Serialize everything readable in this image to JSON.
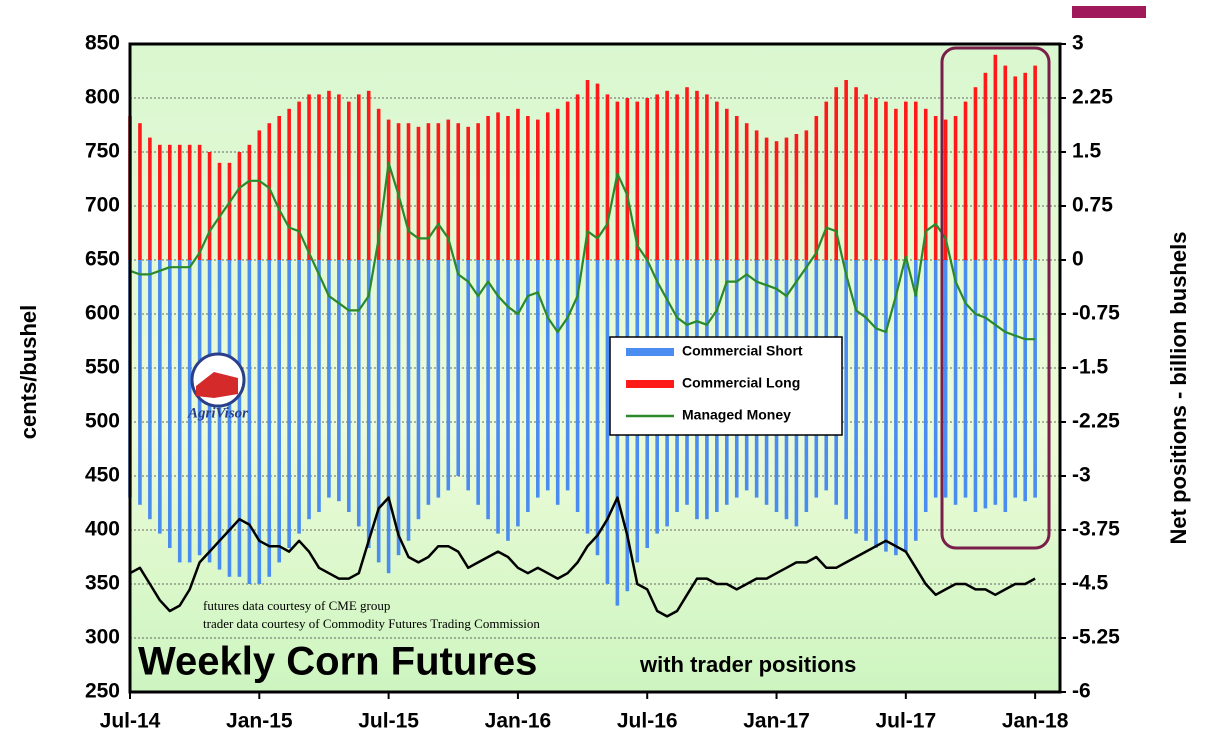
{
  "chart_data": {
    "type": "bar-line",
    "title": "Weekly Corn Futures",
    "subtitle": "with trader positions",
    "ylabel": "cents/bushel",
    "y2label": "Net positions - billion bushels",
    "annotations": [
      "futures data courtesy of CME group",
      "trader data courtesy of Commodity Futures  Trading Commission"
    ],
    "logo": "AgriVisor",
    "xlim": [
      0,
      93.5
    ],
    "xticks": [
      {
        "value": 0,
        "label": "Jul-14"
      },
      {
        "value": 13,
        "label": "Jan-15"
      },
      {
        "value": 26,
        "label": "Jul-15"
      },
      {
        "value": 39,
        "label": "Jan-16"
      },
      {
        "value": 52,
        "label": "Jul-16"
      },
      {
        "value": 65,
        "label": "Jan-17"
      },
      {
        "value": 78,
        "label": "Jul-17"
      },
      {
        "value": 91,
        "label": "Jan-18"
      }
    ],
    "ylim": [
      250,
      850
    ],
    "yticks": [
      250,
      300,
      350,
      400,
      450,
      500,
      550,
      600,
      650,
      700,
      750,
      800,
      850
    ],
    "y2lim": [
      -6,
      3
    ],
    "y2ticks": [
      -6,
      -5.25,
      -4.5,
      -3.75,
      -3,
      -2.25,
      -1.5,
      -0.75,
      0,
      0.75,
      1.5,
      2.25,
      3
    ],
    "grid": true,
    "series": [
      {
        "name": "Commercial Short",
        "color": "#4a8cf0",
        "kind": "bar",
        "axis": "y2",
        "values": [
          -3.3,
          -3.4,
          -3.6,
          -3.8,
          -4.0,
          -4.2,
          -4.2,
          -4.1,
          -4.2,
          -4.3,
          -4.4,
          -4.4,
          -4.5,
          -4.5,
          -4.4,
          -4.2,
          -4.0,
          -3.8,
          -3.6,
          -3.5,
          -3.3,
          -3.35,
          -3.5,
          -3.7,
          -4.0,
          -4.2,
          -4.35,
          -4.1,
          -3.9,
          -3.6,
          -3.4,
          -3.3,
          -3.2,
          -3.0,
          -3.2,
          -3.4,
          -3.6,
          -3.8,
          -3.9,
          -3.7,
          -3.5,
          -3.3,
          -3.2,
          -3.4,
          -3.2,
          -3.5,
          -3.8,
          -4.1,
          -4.5,
          -4.8,
          -4.6,
          -4.2,
          -4.0,
          -3.8,
          -3.7,
          -3.5,
          -3.4,
          -3.6,
          -3.6,
          -3.5,
          -3.4,
          -3.3,
          -3.2,
          -3.3,
          -3.4,
          -3.5,
          -3.6,
          -3.7,
          -3.5,
          -3.3,
          -3.2,
          -3.4,
          -3.6,
          -3.8,
          -3.9,
          -4.0,
          -4.05,
          -4.1,
          -4.05,
          -3.9,
          -3.5,
          -3.3,
          -3.3,
          -3.4,
          -3.3,
          -3.5,
          -3.45,
          -3.4,
          -3.5,
          -3.3,
          -3.35,
          -3.3
        ]
      },
      {
        "name": "Commercial Long",
        "color": "#ff1a1a",
        "kind": "bar",
        "axis": "y2",
        "values": [
          2.0,
          1.9,
          1.7,
          1.6,
          1.6,
          1.6,
          1.6,
          1.6,
          1.5,
          1.35,
          1.35,
          1.5,
          1.6,
          1.8,
          1.9,
          2.0,
          2.1,
          2.2,
          2.3,
          2.3,
          2.35,
          2.3,
          2.2,
          2.3,
          2.35,
          2.1,
          1.95,
          1.9,
          1.9,
          1.85,
          1.9,
          1.9,
          1.95,
          1.9,
          1.85,
          1.9,
          2.0,
          2.05,
          2.0,
          2.1,
          2.0,
          1.95,
          2.05,
          2.1,
          2.2,
          2.3,
          2.5,
          2.45,
          2.3,
          2.2,
          2.25,
          2.2,
          2.25,
          2.3,
          2.35,
          2.3,
          2.4,
          2.35,
          2.3,
          2.2,
          2.1,
          2.0,
          1.9,
          1.8,
          1.7,
          1.65,
          1.7,
          1.75,
          1.8,
          2.0,
          2.2,
          2.4,
          2.5,
          2.4,
          2.3,
          2.25,
          2.2,
          2.1,
          2.2,
          2.2,
          2.1,
          2.0,
          1.95,
          2.0,
          2.2,
          2.4,
          2.6,
          2.85,
          2.7,
          2.55,
          2.6,
          2.7
        ]
      },
      {
        "name": "Managed Money",
        "color": "#2a8a2a",
        "kind": "line",
        "axis": "y2",
        "values": [
          -0.15,
          -0.2,
          -0.2,
          -0.15,
          -0.1,
          -0.1,
          -0.1,
          0.1,
          0.4,
          0.6,
          0.8,
          1.0,
          1.1,
          1.1,
          1.0,
          0.7,
          0.45,
          0.4,
          0.1,
          -0.2,
          -0.5,
          -0.6,
          -0.7,
          -0.7,
          -0.5,
          0.3,
          1.35,
          0.9,
          0.4,
          0.3,
          0.3,
          0.5,
          0.3,
          -0.2,
          -0.3,
          -0.5,
          -0.3,
          -0.5,
          -0.65,
          -0.75,
          -0.5,
          -0.45,
          -0.8,
          -1.0,
          -0.8,
          -0.5,
          0.4,
          0.3,
          0.5,
          1.2,
          0.9,
          0.2,
          0.0,
          -0.3,
          -0.55,
          -0.8,
          -0.9,
          -0.85,
          -0.9,
          -0.7,
          -0.3,
          -0.3,
          -0.2,
          -0.3,
          -0.35,
          -0.4,
          -0.5,
          -0.3,
          -0.1,
          0.1,
          0.45,
          0.4,
          -0.2,
          -0.7,
          -0.8,
          -0.95,
          -1.0,
          -0.5,
          0.05,
          -0.5,
          0.4,
          0.5,
          0.3,
          -0.3,
          -0.6,
          -0.75,
          -0.8,
          -0.9,
          -1.0,
          -1.05,
          -1.1,
          -1.1
        ]
      }
    ],
    "price": {
      "color": "#000000",
      "values": [
        360,
        365,
        350,
        335,
        325,
        330,
        345,
        370,
        380,
        390,
        400,
        410,
        405,
        390,
        385,
        385,
        380,
        390,
        380,
        365,
        360,
        355,
        355,
        360,
        390,
        420,
        430,
        395,
        375,
        370,
        375,
        385,
        385,
        380,
        365,
        370,
        375,
        380,
        375,
        365,
        360,
        365,
        360,
        355,
        360,
        370,
        385,
        395,
        410,
        430,
        395,
        350,
        345,
        325,
        320,
        325,
        340,
        355,
        355,
        350,
        350,
        345,
        350,
        355,
        355,
        360,
        365,
        370,
        370,
        375,
        365,
        365,
        370,
        375,
        380,
        385,
        390,
        385,
        380,
        365,
        350,
        340,
        345,
        350,
        350,
        345,
        345,
        340,
        345,
        350,
        350,
        355
      ]
    }
  }
}
